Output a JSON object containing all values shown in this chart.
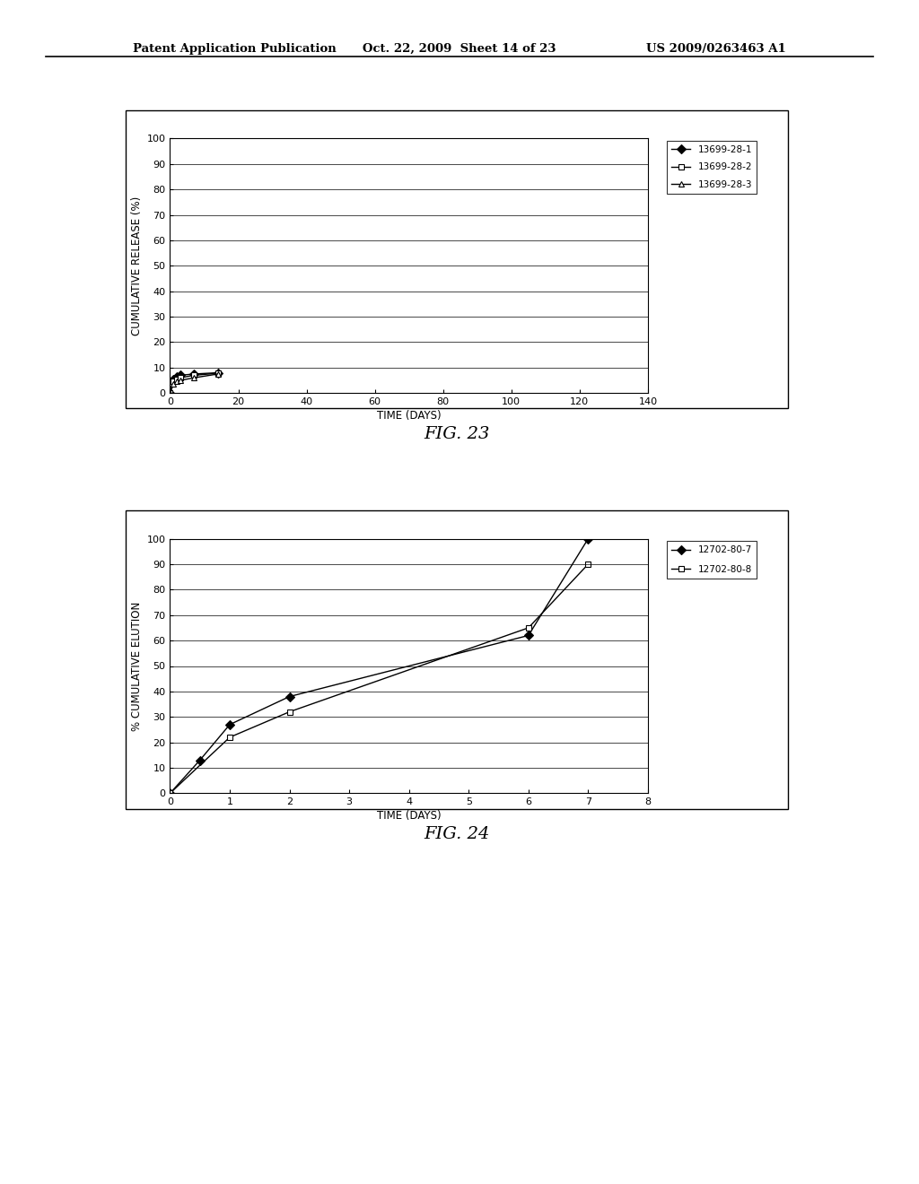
{
  "fig23": {
    "title": "FIG. 23",
    "xlabel": "TIME (DAYS)",
    "ylabel": "CUMULATIVE RELEASE (%)",
    "xlim": [
      0,
      140
    ],
    "ylim": [
      0,
      100
    ],
    "xticks": [
      0,
      20,
      40,
      60,
      80,
      100,
      120,
      140
    ],
    "yticks": [
      0,
      10,
      20,
      30,
      40,
      50,
      60,
      70,
      80,
      90,
      100
    ],
    "series": [
      {
        "label": "13699-28-1",
        "x": [
          0,
          1,
          2,
          3,
          7,
          14
        ],
        "y": [
          0,
          5.5,
          6.5,
          7.0,
          7.5,
          8.0
        ],
        "marker": "D",
        "marker_filled": true,
        "color": "black"
      },
      {
        "label": "13699-28-2",
        "x": [
          0,
          1,
          2,
          3,
          7,
          14
        ],
        "y": [
          0,
          4.5,
          5.5,
          6.0,
          7.0,
          7.8
        ],
        "marker": "s",
        "marker_filled": false,
        "color": "black"
      },
      {
        "label": "13699-28-3",
        "x": [
          0,
          1,
          2,
          3,
          7,
          14
        ],
        "y": [
          0,
          3.5,
          4.5,
          5.0,
          6.0,
          7.5
        ],
        "marker": "^",
        "marker_filled": false,
        "color": "black"
      }
    ]
  },
  "fig24": {
    "title": "FIG. 24",
    "xlabel": "TIME (DAYS)",
    "ylabel": "% CUMULATIVE ELUTION",
    "xlim": [
      0,
      8
    ],
    "ylim": [
      0,
      100
    ],
    "xticks": [
      0,
      1,
      2,
      3,
      4,
      5,
      6,
      7,
      8
    ],
    "yticks": [
      0,
      10,
      20,
      30,
      40,
      50,
      60,
      70,
      80,
      90,
      100
    ],
    "series": [
      {
        "label": "12702-80-7",
        "x": [
          0,
          0.5,
          1,
          2,
          6,
          7
        ],
        "y": [
          0,
          13,
          27,
          38,
          62,
          100
        ],
        "marker": "D",
        "marker_filled": true,
        "color": "black"
      },
      {
        "label": "12702-80-8",
        "x": [
          0,
          1,
          2,
          6,
          7
        ],
        "y": [
          0,
          22,
          32,
          65,
          90
        ],
        "marker": "s",
        "marker_filled": false,
        "color": "black"
      }
    ]
  },
  "header_left": "Patent Application Publication",
  "header_center": "Oct. 22, 2009  Sheet 14 of 23",
  "header_right": "US 2009/0263463 A1",
  "background_color": "#ffffff",
  "text_color": "#000000"
}
